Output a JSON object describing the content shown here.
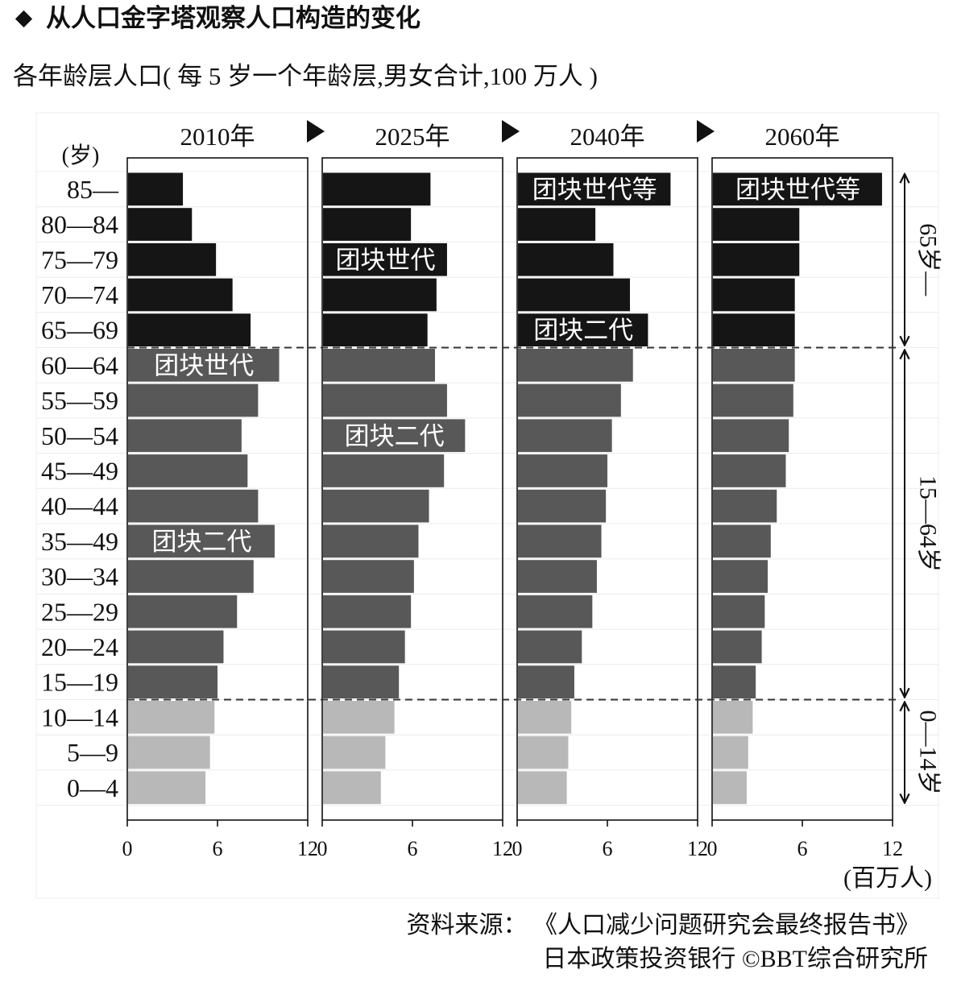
{
  "chart_data": {
    "type": "bar",
    "horizontal": true,
    "title": "从人口金字塔观察人口构造的变化",
    "subtitle": "各年龄层人口( 每 5 岁一个年龄层,男女合计,100 万人 )",
    "ylabel": "(岁)",
    "xlabel": "(百万人)",
    "xlim": [
      0,
      12
    ],
    "xticks": [
      0,
      6,
      12
    ],
    "grid": false,
    "legend": false,
    "categories": [
      "85—",
      "80—84",
      "75—79",
      "70—74",
      "65—69",
      "60—64",
      "55—59",
      "50—54",
      "45—49",
      "40—44",
      "35—49",
      "30—34",
      "25—29",
      "20—24",
      "15—19",
      "10—14",
      "5—9",
      "0—4"
    ],
    "series": [
      {
        "name": "2010年",
        "values": [
          3.7,
          4.3,
          5.9,
          7.0,
          8.2,
          10.1,
          8.7,
          7.6,
          8.0,
          8.7,
          9.8,
          8.4,
          7.3,
          6.4,
          6.0,
          5.8,
          5.5,
          5.2
        ],
        "annotations": [
          {
            "category": "60—64",
            "text": "团块世代"
          },
          {
            "category": "35—49",
            "text": "团块二代"
          }
        ]
      },
      {
        "name": "2025年",
        "values": [
          7.2,
          5.9,
          8.3,
          7.6,
          7.0,
          7.5,
          8.3,
          9.5,
          8.1,
          7.1,
          6.4,
          6.1,
          5.9,
          5.5,
          5.1,
          4.8,
          4.2,
          3.9
        ],
        "annotations": [
          {
            "category": "75—79",
            "text": "团块世代"
          },
          {
            "category": "50—54",
            "text": "团块二代"
          }
        ]
      },
      {
        "name": "2040年",
        "values": [
          10.2,
          5.2,
          6.4,
          7.5,
          8.7,
          7.7,
          6.9,
          6.3,
          6.0,
          5.9,
          5.6,
          5.3,
          5.0,
          4.3,
          3.8,
          3.6,
          3.4,
          3.3
        ],
        "annotations": [
          {
            "category": "85—",
            "text": "团块世代等"
          },
          {
            "category": "65—69",
            "text": "团块二代"
          }
        ]
      },
      {
        "name": "2060年",
        "values": [
          11.3,
          5.8,
          5.8,
          5.5,
          5.5,
          5.5,
          5.4,
          5.1,
          4.9,
          4.3,
          3.9,
          3.7,
          3.5,
          3.3,
          2.9,
          2.7,
          2.4,
          2.3
        ],
        "annotations": [
          {
            "category": "85—",
            "text": "团块世代等"
          }
        ]
      }
    ],
    "age_bands": [
      {
        "label": "65岁—",
        "from": "85—",
        "to": "65—69",
        "color": "#151515"
      },
      {
        "label": "15—64岁",
        "from": "60—64",
        "to": "15—19",
        "color": "#585858"
      },
      {
        "label": "0—14岁",
        "from": "10—14",
        "to": "0—4",
        "color": "#b8b8b8"
      }
    ]
  },
  "source": {
    "line1": "资料来源： 《人口减少问题研究会最终报告书》",
    "line2": "日本政策投资银行 ©BBT综合研究所"
  }
}
